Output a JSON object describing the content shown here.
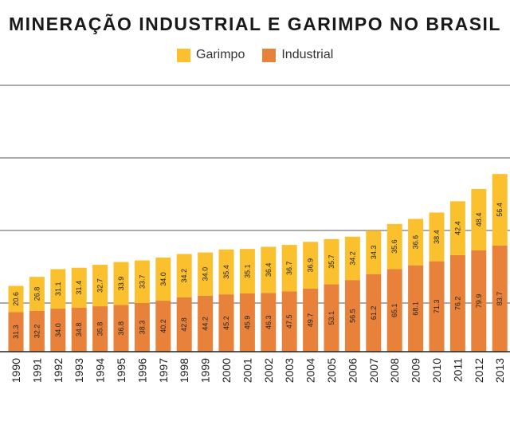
{
  "chart_data": {
    "type": "bar",
    "stacked": true,
    "title": "MINERAÇÃO INDUSTRIAL E GARIMPO NO BRASIL",
    "legend_position": "top",
    "grid": true,
    "categories": [
      "1990",
      "1991",
      "1992",
      "1993",
      "1994",
      "1995",
      "1996",
      "1997",
      "1998",
      "1999",
      "2000",
      "2001",
      "2002",
      "2003",
      "2004",
      "2005",
      "2006",
      "2007",
      "2008",
      "2009",
      "2010",
      "2011",
      "2012",
      "2013"
    ],
    "series": [
      {
        "name": "Industrial",
        "color": "#E8823A",
        "values": [
          31.3,
          32.2,
          34.0,
          34.8,
          35.8,
          36.8,
          38.3,
          40.2,
          42.8,
          44.2,
          45.2,
          45.9,
          46.3,
          47.5,
          49.7,
          53.1,
          56.5,
          61.2,
          65.1,
          68.1,
          71.3,
          76.2,
          79.9,
          83.7
        ]
      },
      {
        "name": "Garimpo",
        "color": "#FBC02D",
        "values": [
          20.6,
          26.8,
          31.1,
          31.4,
          32.7,
          33.9,
          33.7,
          34.0,
          34.2,
          34.0,
          35.4,
          35.1,
          36.4,
          36.7,
          36.9,
          35.7,
          34.2,
          34.3,
          35.6,
          36.6,
          38.4,
          42.4,
          48.4,
          56.4
        ]
      }
    ],
    "value_labels": {
      "Industrial": [
        "31.3",
        "32.2",
        "34.0",
        "34.8",
        "35.8",
        "36.8",
        "38.3",
        "40.2",
        "42.8",
        "44.2",
        "45.2",
        "45.9",
        "46.3",
        "47.5",
        "49.7",
        "53.1",
        "56.5",
        "61.2",
        "65.1",
        "68.1",
        "71.3",
        "76.2",
        "79.9",
        "83.7"
      ],
      "Garimpo": [
        "20.6",
        "26.8",
        "31.1",
        "31.4",
        "32.7",
        "33.9",
        "33.7",
        "34.0",
        "34.2",
        "34.0",
        "35.4",
        "35.1",
        "36.4",
        "36.7",
        "36.9",
        "35.7",
        "34.2",
        "34.3",
        "35.6",
        "36.6",
        "38.4",
        "42.4",
        "48.4",
        "56.4"
      ]
    },
    "xlabel": "",
    "ylabel": "",
    "ylim": [
      0,
      210
    ]
  }
}
